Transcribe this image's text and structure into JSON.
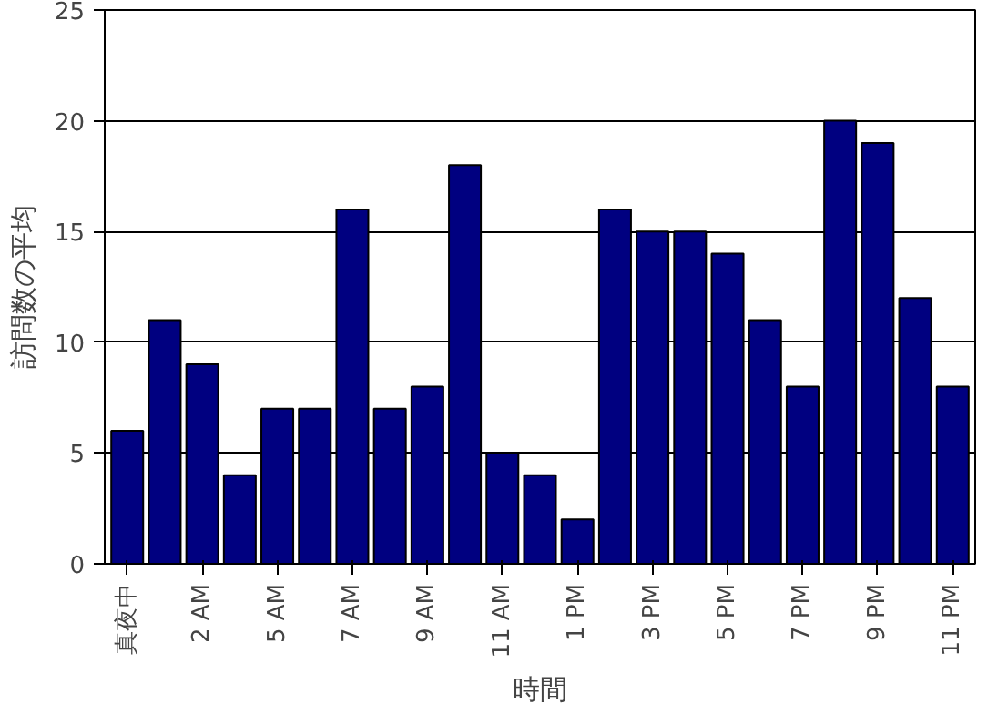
{
  "chart_data": {
    "type": "bar",
    "xlabel": "時間",
    "ylabel": "訪問数の平均",
    "categories": [
      "真夜中",
      null,
      "2 AM",
      null,
      "5 AM",
      null,
      "7 AM",
      null,
      "9 AM",
      null,
      "11 AM",
      null,
      "1 PM",
      null,
      "3 PM",
      null,
      "5 PM",
      null,
      "7 PM",
      null,
      "9 PM",
      null,
      "11 PM"
    ],
    "values": [
      6,
      11,
      9,
      4,
      7,
      7,
      16,
      7,
      8,
      18,
      5,
      4,
      2,
      16,
      15,
      15,
      14,
      11,
      8,
      20,
      19,
      12,
      8
    ],
    "color": "#000080",
    "ylim": [
      0,
      25
    ],
    "yticks": [
      0,
      5,
      10,
      15,
      20,
      25
    ],
    "grid": "y"
  }
}
